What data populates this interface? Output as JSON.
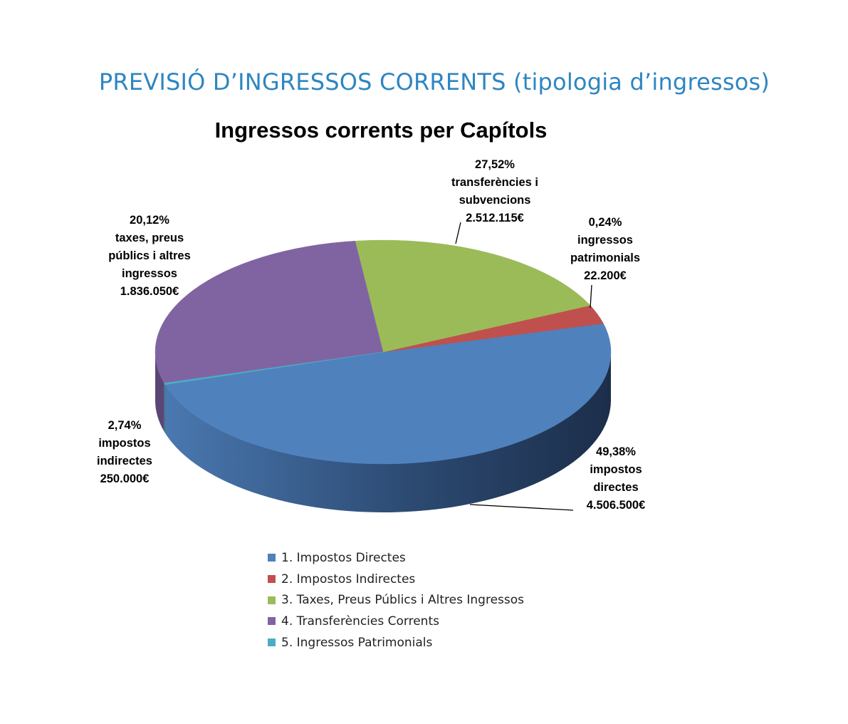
{
  "page_title": "PREVISIÓ D’INGRESSOS CORRENTS (tipologia d’ingressos)",
  "chart_data": {
    "type": "pie",
    "title": "Ingressos corrents per Capítols",
    "legend_position": "bottom",
    "slices": [
      {
        "legend": "1. Impostos Directes",
        "percent": 49.38,
        "percent_label": "49,38%",
        "desc": [
          "impostos",
          "directes"
        ],
        "amount": 4506500,
        "amount_label": "4.506.500€",
        "color": "#4f81bd"
      },
      {
        "legend": "2. Impostos Indirectes",
        "percent": 2.74,
        "percent_label": "2,74%",
        "desc": [
          "impostos",
          "indirectes"
        ],
        "amount": 250000,
        "amount_label": "250.000€",
        "color": "#c0504d"
      },
      {
        "legend": "3. Taxes, Preus Públics i Altres Ingressos",
        "percent": 20.12,
        "percent_label": "20,12%",
        "desc": [
          "taxes, preus",
          "públics i altres",
          "ingressos"
        ],
        "amount": 1836050,
        "amount_label": "1.836.050€",
        "color": "#9bbb59"
      },
      {
        "legend": "4. Transferències Corrents",
        "percent": 27.52,
        "percent_label": "27,52%",
        "desc": [
          "transferències i",
          "subvencions"
        ],
        "amount": 2512115,
        "amount_label": "2.512.115€",
        "color": "#8064a2"
      },
      {
        "legend": "5. Ingressos Patrimonials",
        "percent": 0.24,
        "percent_label": "0,24%",
        "desc": [
          "ingressos",
          "patrimonials"
        ],
        "amount": 22200,
        "amount_label": "22.200€",
        "color": "#4bacc6"
      }
    ]
  }
}
